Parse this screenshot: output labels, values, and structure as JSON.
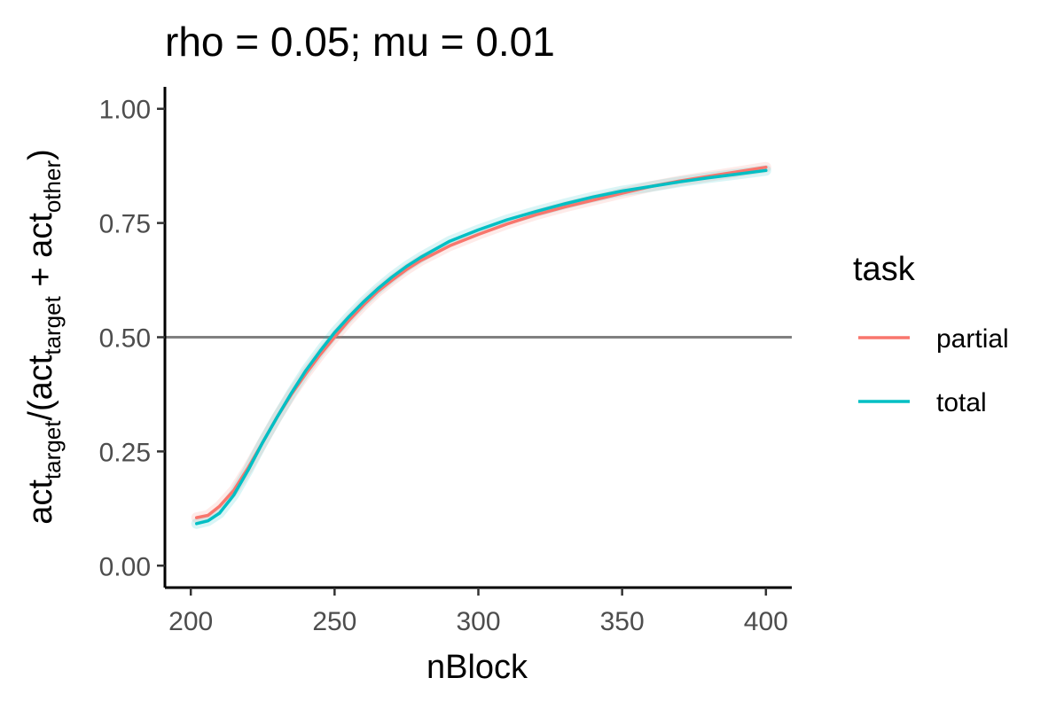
{
  "chart_data": {
    "type": "line",
    "title": "rho = 0.05; mu = 0.01",
    "xlabel": "nBlock",
    "ylabel": {
      "parts": [
        {
          "text": "act",
          "sub": false
        },
        {
          "text": "target",
          "sub": true
        },
        {
          "text": "/(act",
          "sub": false
        },
        {
          "text": "target",
          "sub": true
        },
        {
          "text": " + act",
          "sub": false
        },
        {
          "text": "other",
          "sub": true
        },
        {
          "text": ")",
          "sub": false
        }
      ]
    },
    "xlim": [
      191,
      409
    ],
    "ylim": [
      -0.048,
      1.048
    ],
    "xticks": [
      200,
      250,
      300,
      350,
      400
    ],
    "xtick_labels": [
      "200",
      "250",
      "300",
      "350",
      "400"
    ],
    "yticks": [
      0,
      0.25,
      0.5,
      0.75,
      1.0
    ],
    "ytick_labels": [
      "0.00",
      "0.25",
      "0.50",
      "0.75",
      "1.00"
    ],
    "hline": 0.5,
    "hline_color": "#808080",
    "grid": false,
    "legend": {
      "title": "task",
      "position": "right"
    },
    "series": [
      {
        "name": "partial",
        "color": "#F8766D",
        "x": [
          202,
          206,
          210,
          215,
          220,
          225,
          230,
          235,
          240,
          245,
          250,
          255,
          260,
          265,
          270,
          275,
          280,
          290,
          300,
          310,
          320,
          330,
          340,
          350,
          360,
          370,
          380,
          390,
          400
        ],
        "y": [
          0.105,
          0.11,
          0.13,
          0.165,
          0.215,
          0.27,
          0.325,
          0.375,
          0.42,
          0.462,
          0.5,
          0.537,
          0.57,
          0.6,
          0.625,
          0.648,
          0.668,
          0.7,
          0.725,
          0.748,
          0.768,
          0.785,
          0.8,
          0.815,
          0.83,
          0.842,
          0.852,
          0.862,
          0.872
        ]
      },
      {
        "name": "total",
        "color": "#00BFC4",
        "x": [
          202,
          206,
          210,
          215,
          220,
          225,
          230,
          235,
          240,
          245,
          250,
          255,
          260,
          265,
          270,
          275,
          280,
          290,
          300,
          310,
          320,
          330,
          340,
          350,
          360,
          370,
          380,
          390,
          400
        ],
        "y": [
          0.092,
          0.098,
          0.115,
          0.155,
          0.21,
          0.27,
          0.325,
          0.378,
          0.427,
          0.47,
          0.51,
          0.545,
          0.577,
          0.606,
          0.632,
          0.655,
          0.675,
          0.71,
          0.735,
          0.757,
          0.775,
          0.792,
          0.807,
          0.82,
          0.83,
          0.84,
          0.849,
          0.857,
          0.865
        ]
      }
    ]
  }
}
